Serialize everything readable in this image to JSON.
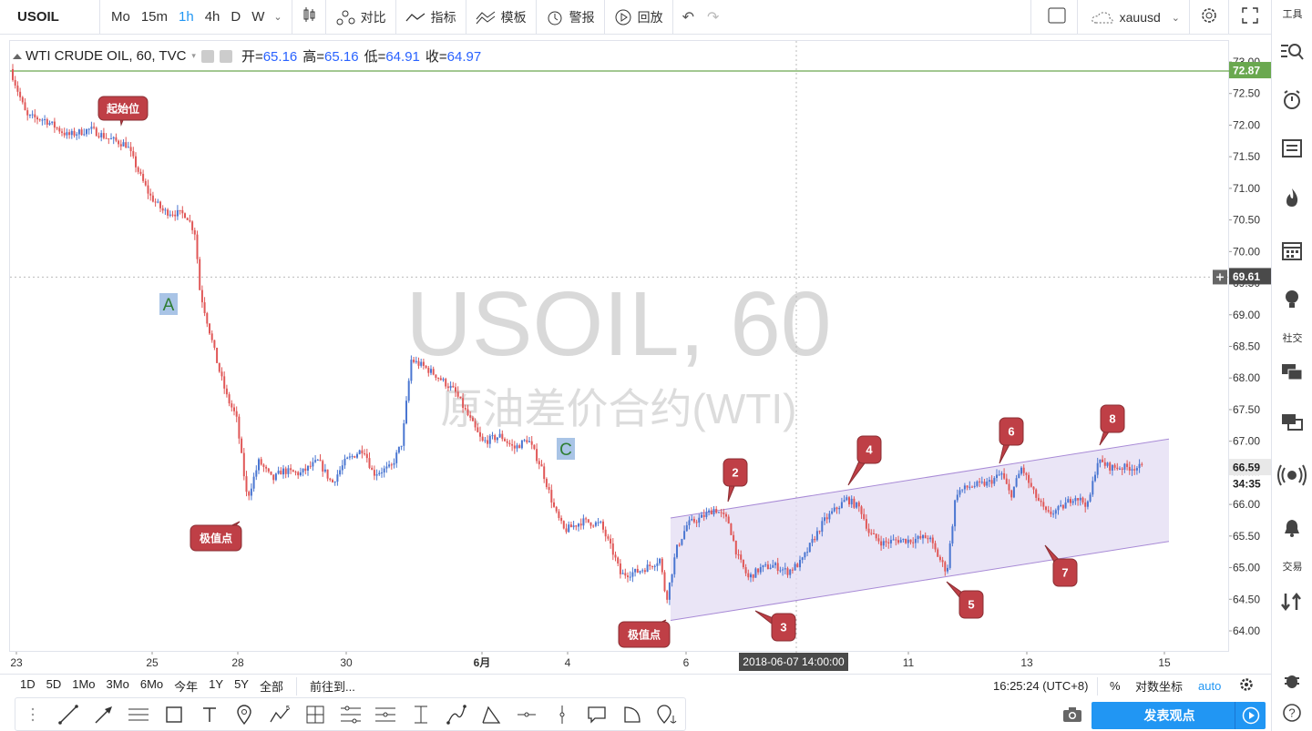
{
  "topbar": {
    "symbol": "USOIL",
    "intervals": [
      "Mo",
      "15m",
      "1h",
      "4h",
      "D",
      "W"
    ],
    "active_interval": "1h",
    "compare": "对比",
    "indicators": "指标",
    "templates": "模板",
    "alerts": "警报",
    "replay": "回放",
    "layout_name": "xauusd"
  },
  "rightbar": {
    "tools": "工具",
    "social": "社交",
    "trade": "交易"
  },
  "legend": {
    "title": "WTI CRUDE OIL, 60, TVC",
    "open_label": "开=",
    "open": "65.16",
    "high_label": "高=",
    "high": "65.16",
    "low_label": "低=",
    "low": "64.91",
    "close_label": "收=",
    "close": "64.97"
  },
  "watermark": {
    "line1": "USOIL, 60",
    "line2": "原油差价合约(WTI)"
  },
  "price_axis": {
    "ticks": [
      "73.00",
      "72.50",
      "72.00",
      "71.50",
      "71.00",
      "70.50",
      "70.00",
      "69.50",
      "69.00",
      "68.50",
      "68.00",
      "67.50",
      "67.00",
      "66.50",
      "66.00",
      "65.50",
      "65.00",
      "64.50",
      "64.00"
    ],
    "last_line_label": "72.87",
    "crosshair_label": "69.61",
    "current_price": "66.59",
    "countdown": "34:35"
  },
  "time_axis": {
    "ticks": [
      "23",
      "25",
      "28",
      "30",
      "6月",
      "4",
      "6",
      "11",
      "13",
      "15"
    ],
    "crosshair_label": "2018-06-07 14:00:00"
  },
  "annotations": {
    "start": "起始位",
    "extreme1": "极值点",
    "extreme2": "极值点",
    "wave_a": "A",
    "wave_c": "C",
    "n2": "2",
    "n3": "3",
    "n4": "4",
    "n5": "5",
    "n6": "6",
    "n7": "7",
    "n8": "8"
  },
  "bottombar": {
    "ranges": [
      "1D",
      "5D",
      "1Mo",
      "3Mo",
      "6Mo",
      "今年",
      "1Y",
      "5Y",
      "全部"
    ],
    "goto": "前往到...",
    "time": "16:25:24 (UTC+8)",
    "percent": "%",
    "log": "对数坐标",
    "auto": "auto"
  },
  "publish": "发表观点",
  "colors": {
    "up": "#4a76d1",
    "down": "#e05757",
    "accent": "#2196f3",
    "channel_fill": "#e3dcf3",
    "channel_line": "#a88ad6",
    "pill": "#bf3f46",
    "wave_label_bg": "#a9c4e6",
    "wave_label_text": "#2e7d32"
  }
}
